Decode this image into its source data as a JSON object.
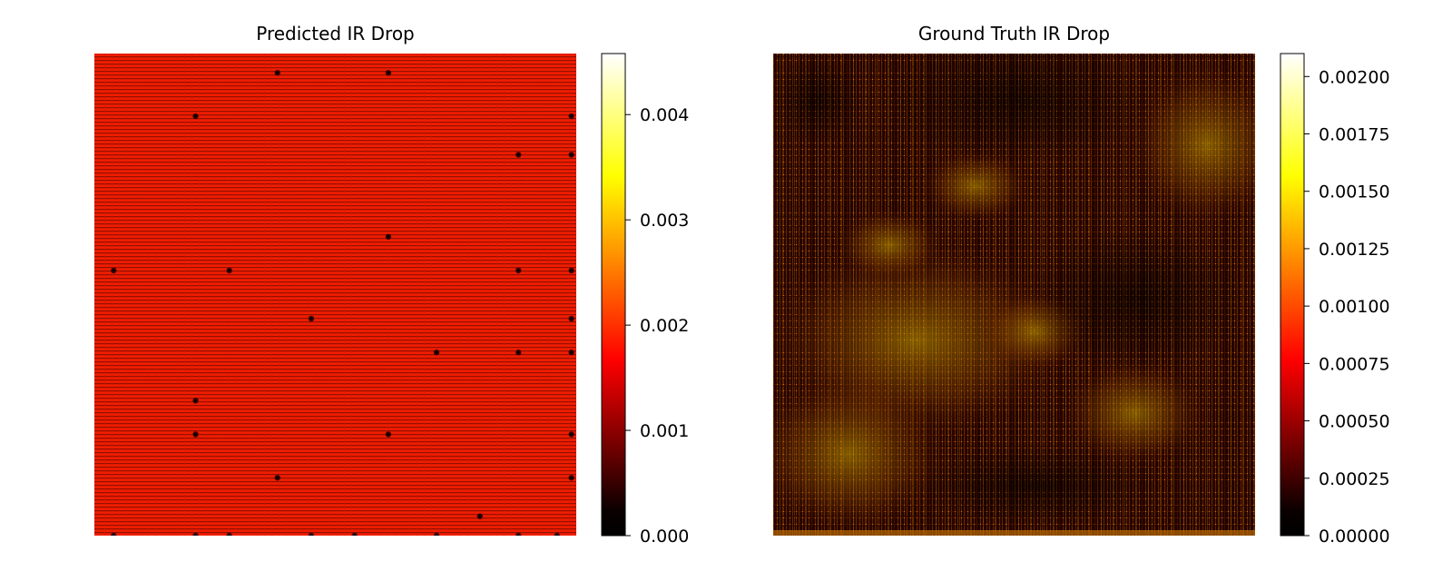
{
  "chart_data": [
    {
      "type": "heatmap",
      "title": "Predicted IR Drop",
      "xlabel": "",
      "ylabel": "",
      "grid": false,
      "colormap": "hot",
      "colorbar": {
        "vmin": 0.0,
        "vmax": 0.00458,
        "ticks": [
          0.0,
          0.001,
          0.002,
          0.003,
          0.004
        ],
        "tick_labels": [
          "0.000",
          "0.001",
          "0.002",
          "0.003",
          "0.004"
        ]
      },
      "approx_background_value": 0.00195,
      "local_minima_markers": [
        [
          0.38,
          0.04
        ],
        [
          0.61,
          0.04
        ],
        [
          0.21,
          0.13
        ],
        [
          0.99,
          0.13
        ],
        [
          0.88,
          0.21
        ],
        [
          0.99,
          0.21
        ],
        [
          0.61,
          0.38
        ],
        [
          0.04,
          0.45
        ],
        [
          0.28,
          0.45
        ],
        [
          0.88,
          0.45
        ],
        [
          0.99,
          0.45
        ],
        [
          0.45,
          0.55
        ],
        [
          0.99,
          0.55
        ],
        [
          0.71,
          0.62
        ],
        [
          0.88,
          0.62
        ],
        [
          0.99,
          0.62
        ],
        [
          0.21,
          0.72
        ],
        [
          0.21,
          0.79
        ],
        [
          0.61,
          0.79
        ],
        [
          0.99,
          0.79
        ],
        [
          0.38,
          0.88
        ],
        [
          0.99,
          0.88
        ],
        [
          0.8,
          0.96
        ],
        [
          0.04,
          1.0
        ],
        [
          0.21,
          1.0
        ],
        [
          0.28,
          1.0
        ],
        [
          0.45,
          1.0
        ],
        [
          0.54,
          1.0
        ],
        [
          0.71,
          1.0
        ],
        [
          0.88,
          1.0
        ],
        [
          0.96,
          1.0
        ]
      ]
    },
    {
      "type": "heatmap",
      "title": "Ground Truth IR Drop",
      "xlabel": "",
      "ylabel": "",
      "grid": false,
      "colormap": "hot",
      "colorbar": {
        "vmin": 0.0,
        "vmax": 0.0021,
        "ticks": [
          0.0,
          0.00025,
          0.0005,
          0.00075,
          0.001,
          0.00125,
          0.0015,
          0.00175,
          0.002
        ],
        "tick_labels": [
          "0.00000",
          "0.00025",
          "0.00050",
          "0.00075",
          "0.00100",
          "0.00125",
          "0.00150",
          "0.00175",
          "0.00200"
        ]
      },
      "approx_background_value": 0.0004
    }
  ],
  "colors": {
    "hot_stops": [
      "#000000",
      "#0a0000",
      "#ff0000",
      "#ffff00",
      "#ffffff"
    ]
  }
}
